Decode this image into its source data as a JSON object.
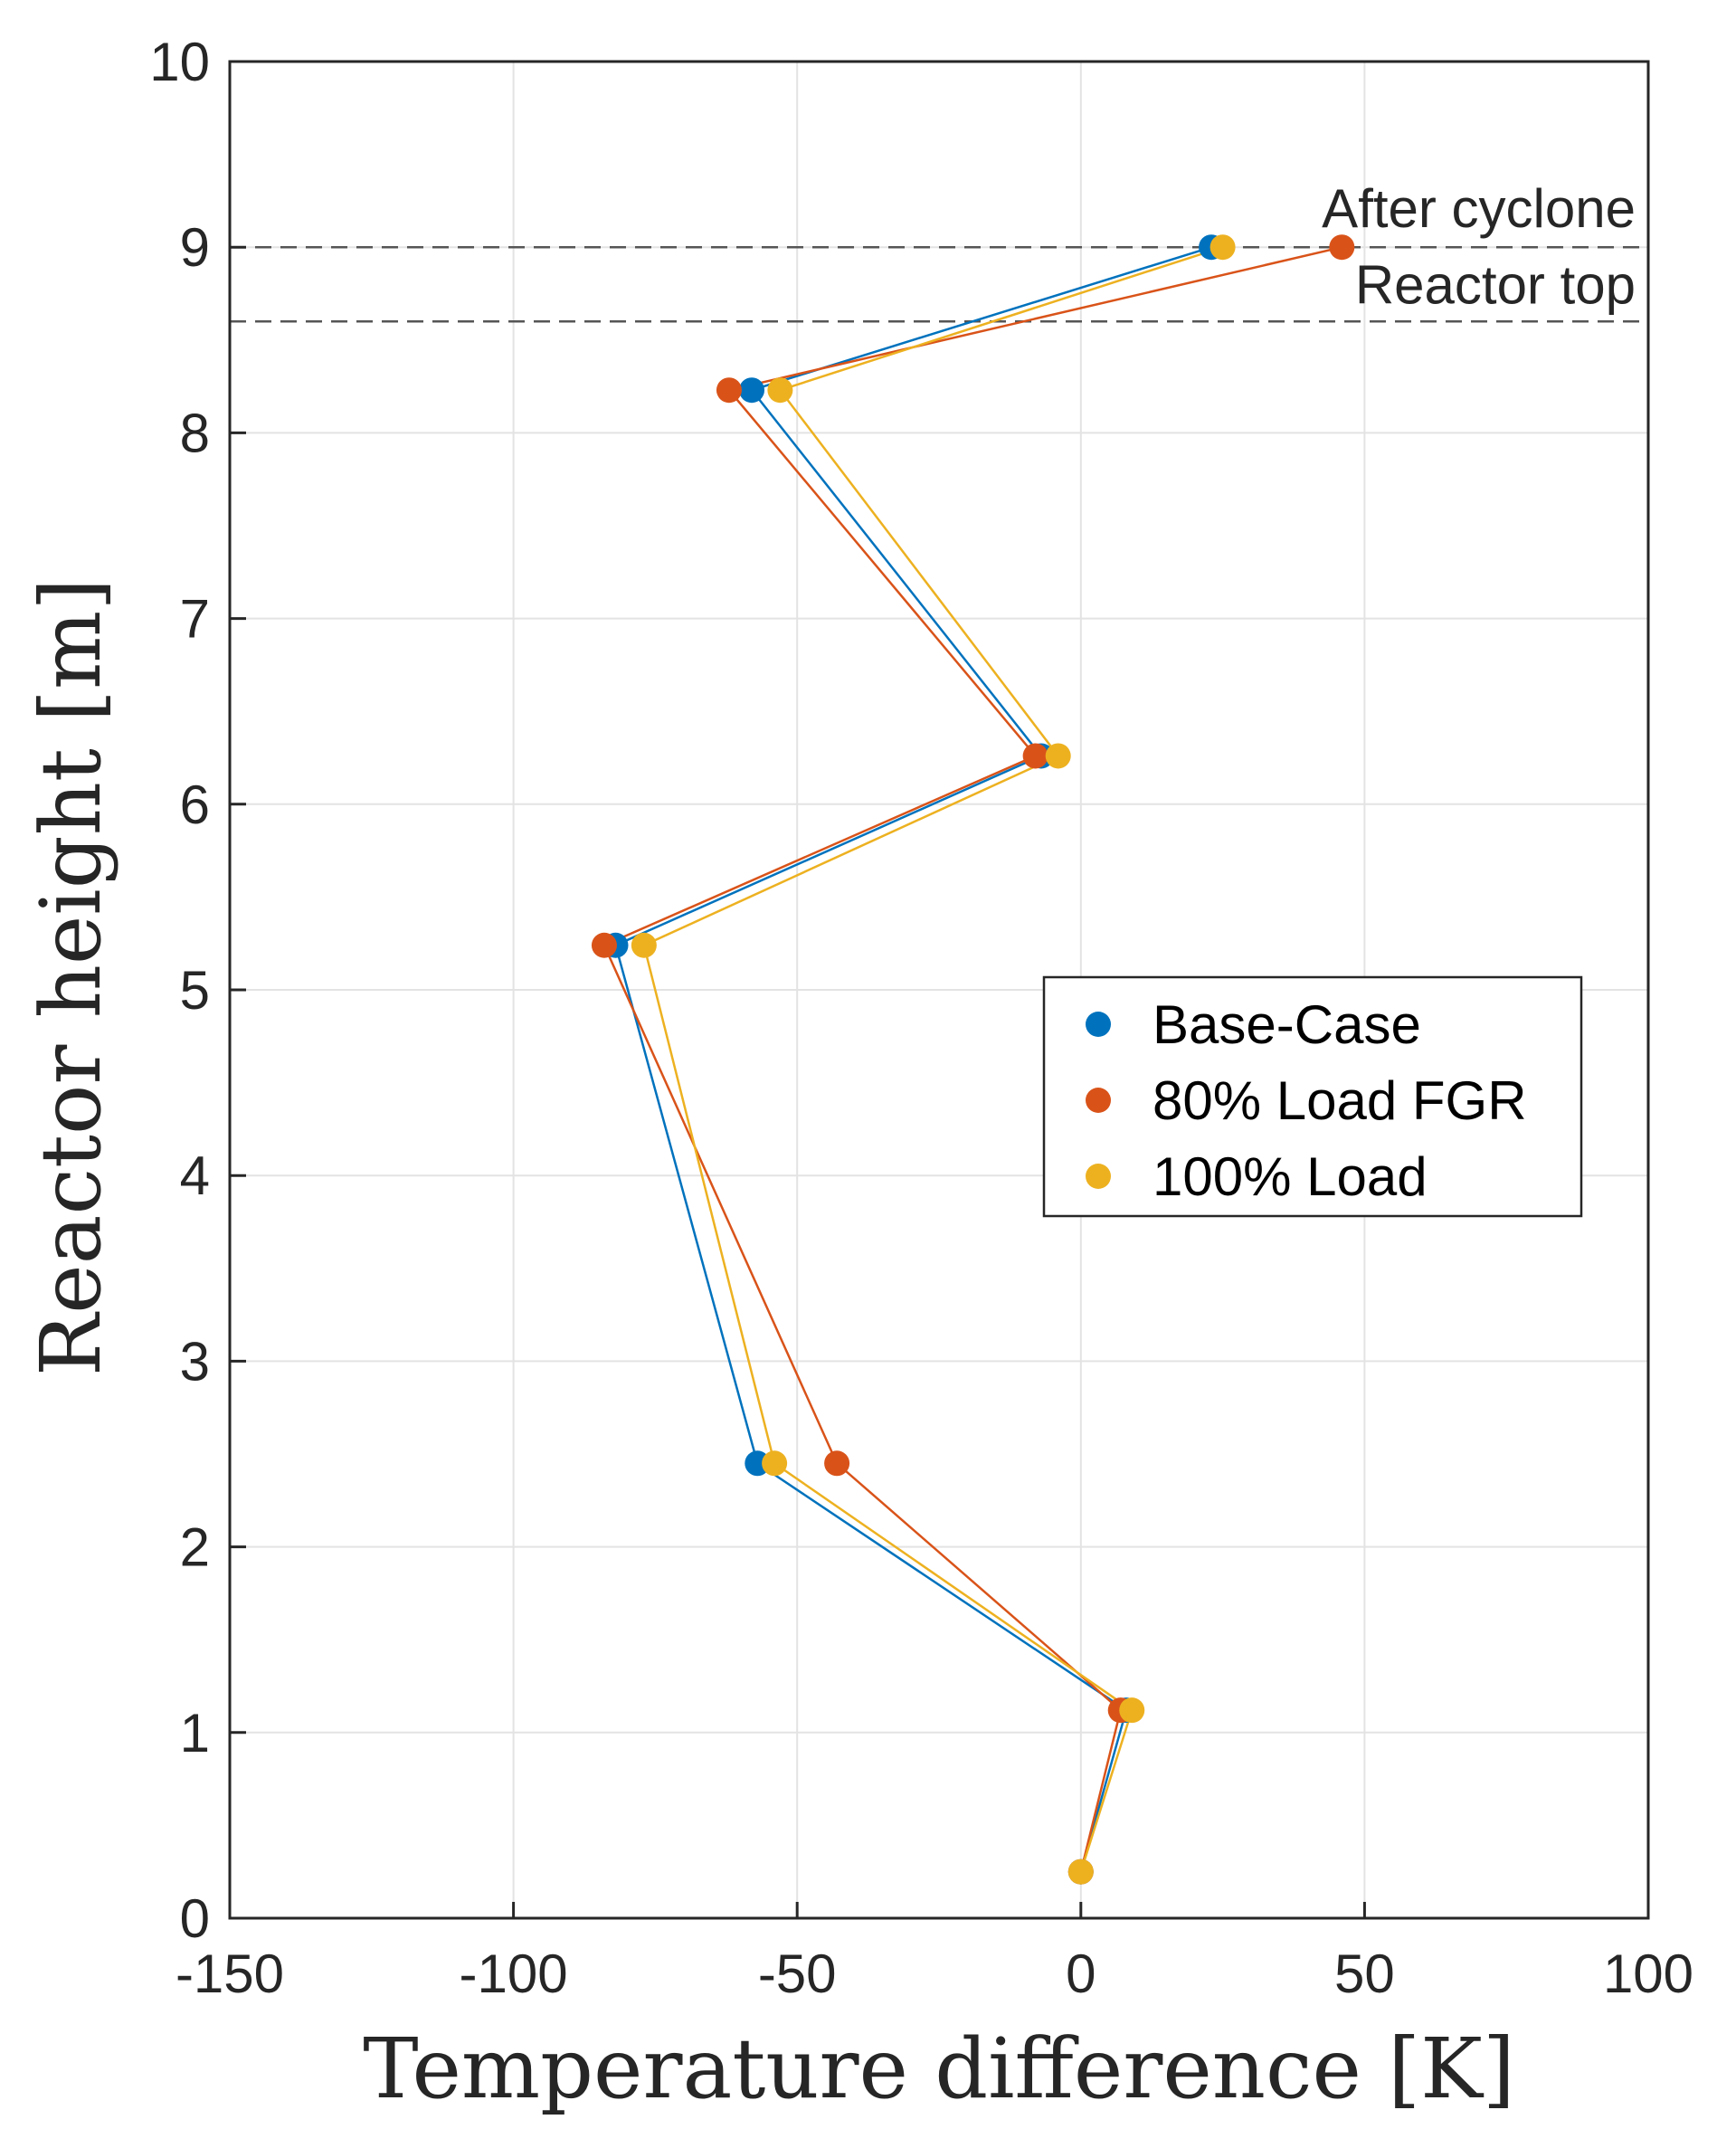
{
  "chart_data": {
    "type": "line",
    "title": "",
    "xlabel": "Temperature difference [K]",
    "ylabel": "Reactor height [m]",
    "xlim": [
      -150,
      100
    ],
    "ylim": [
      0,
      10
    ],
    "grid": true,
    "x_ticks": [
      -150,
      -100,
      -50,
      0,
      50,
      100
    ],
    "y_ticks": [
      0,
      1,
      2,
      3,
      4,
      5,
      6,
      7,
      8,
      9,
      10
    ],
    "x_tick_labels": [
      "-150",
      "-100",
      "-50",
      "0",
      "50",
      "100"
    ],
    "y_tick_labels": [
      "0",
      "1",
      "2",
      "3",
      "4",
      "5",
      "6",
      "7",
      "8",
      "9",
      "10"
    ],
    "series": [
      {
        "name": "Base-Case",
        "color": "#0072BD",
        "points": [
          {
            "x": 0,
            "y": 0.25
          },
          {
            "x": 8,
            "y": 1.12
          },
          {
            "x": -57,
            "y": 2.45
          },
          {
            "x": -82,
            "y": 5.24
          },
          {
            "x": -7,
            "y": 6.26
          },
          {
            "x": -58,
            "y": 8.23
          },
          {
            "x": 23,
            "y": 9.0
          }
        ]
      },
      {
        "name": "80% Load FGR",
        "color": "#D95319",
        "points": [
          {
            "x": 0,
            "y": 0.25
          },
          {
            "x": 7,
            "y": 1.12
          },
          {
            "x": -43,
            "y": 2.45
          },
          {
            "x": -84,
            "y": 5.24
          },
          {
            "x": -8,
            "y": 6.26
          },
          {
            "x": -62,
            "y": 8.23
          },
          {
            "x": 46,
            "y": 9.0
          }
        ]
      },
      {
        "name": "100% Load",
        "color": "#EDB120",
        "points": [
          {
            "x": 0,
            "y": 0.25
          },
          {
            "x": 9,
            "y": 1.12
          },
          {
            "x": -54,
            "y": 2.45
          },
          {
            "x": -77,
            "y": 5.24
          },
          {
            "x": -4,
            "y": 6.26
          },
          {
            "x": -53,
            "y": 8.23
          },
          {
            "x": 25,
            "y": 9.0
          }
        ]
      }
    ],
    "reference_lines": [
      {
        "y": 9.0,
        "label": "After cyclone",
        "style": "dashed"
      },
      {
        "y": 8.6,
        "label": "Reactor top",
        "style": "dashed"
      }
    ],
    "legend_position": "center-right"
  }
}
